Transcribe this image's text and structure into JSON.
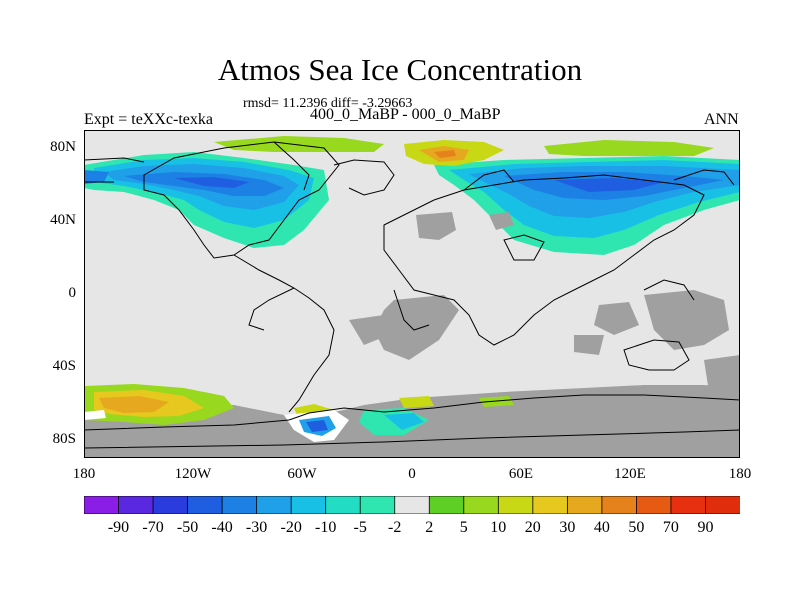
{
  "figure": {
    "title": "Atmos Sea Ice Concentration",
    "stats": "rmsd= 11.2396 diff= -3.29663",
    "left_label": "Expt = teXXc-texka",
    "center_label": "400_0_MaBP - 000_0_MaBP",
    "right_label": "ANN"
  },
  "axes": {
    "lat_ticks": [
      "80N",
      "40N",
      "0",
      "40S",
      "80S"
    ],
    "lon_ticks": [
      "180",
      "120W",
      "60W",
      "0",
      "60E",
      "120E",
      "180"
    ]
  },
  "colorbar": {
    "labels": [
      "-90",
      "-70",
      "-50",
      "-40",
      "-30",
      "-20",
      "-10",
      "-5",
      "-2",
      "2",
      "5",
      "10",
      "20",
      "30",
      "40",
      "50",
      "70",
      "90"
    ],
    "colors": [
      "#8a1ee6",
      "#5a28e0",
      "#2a3cde",
      "#1f5ee0",
      "#1c80e4",
      "#1fa0e8",
      "#19c0e6",
      "#22dcc4",
      "#30e6b0",
      "#e6e6e6",
      "#5ed025",
      "#98d81e",
      "#c8d815",
      "#e6c81e",
      "#e6a81e",
      "#e6821c",
      "#e65a14",
      "#e6300f",
      "#e02d0c"
    ]
  },
  "colors": {
    "land": "#e6e6e6",
    "masked": "#a0a0a0",
    "coast": "#000000"
  }
}
